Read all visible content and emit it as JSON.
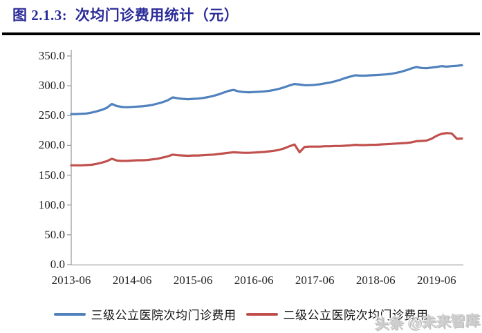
{
  "header": {
    "title": "图 2.1.3:  次均门诊费用统计（元）",
    "title_color": "#2B2B99"
  },
  "watermark": "头条 @未来智库",
  "chart_data": {
    "type": "line",
    "title": "次均门诊费用统计（元）",
    "xlabel": "",
    "ylabel": "",
    "ylim": [
      0,
      350
    ],
    "grid": false,
    "legend_position": "bottom",
    "axis_color": "#9E9E9E",
    "y_ticks": [
      350,
      300,
      250,
      200,
      150,
      100,
      50,
      0
    ],
    "y_tick_labels": [
      "350.0",
      "300.0",
      "250.0",
      "200.0",
      "150.0",
      "100.0",
      "50.0",
      "0.0"
    ],
    "x_tick_labels": [
      "2013-06",
      "2014-06",
      "2015-06",
      "2016-06",
      "2017-06",
      "2018-06",
      "2019-06"
    ],
    "x": [
      "2013-06",
      "2013-07",
      "2013-08",
      "2013-09",
      "2013-10",
      "2013-11",
      "2013-12",
      "2014-01",
      "2014-02",
      "2014-03",
      "2014-04",
      "2014-05",
      "2014-06",
      "2014-07",
      "2014-08",
      "2014-09",
      "2014-10",
      "2014-11",
      "2014-12",
      "2015-01",
      "2015-02",
      "2015-03",
      "2015-04",
      "2015-05",
      "2015-06",
      "2015-07",
      "2015-08",
      "2015-09",
      "2015-10",
      "2015-11",
      "2015-12",
      "2016-01",
      "2016-02",
      "2016-03",
      "2016-04",
      "2016-05",
      "2016-06",
      "2016-07",
      "2016-08",
      "2016-09",
      "2016-10",
      "2016-11",
      "2016-12",
      "2017-01",
      "2017-02",
      "2017-03",
      "2017-04",
      "2017-05",
      "2017-06",
      "2017-07",
      "2017-08",
      "2017-09",
      "2017-10",
      "2017-11",
      "2017-12",
      "2018-01",
      "2018-02",
      "2018-03",
      "2018-04",
      "2018-05",
      "2018-06",
      "2018-07",
      "2018-08",
      "2018-09",
      "2018-10",
      "2018-11",
      "2018-12",
      "2019-01",
      "2019-02",
      "2019-03",
      "2019-04",
      "2019-05",
      "2019-06",
      "2019-07",
      "2019-08",
      "2019-09",
      "2019-10",
      "2019-11"
    ],
    "series": [
      {
        "name": "三级公立医院次均门诊费用",
        "color": "#4F81BD",
        "values": [
          252.5,
          252.5,
          253,
          253.5,
          255,
          257,
          259.5,
          263,
          269.5,
          266,
          264.5,
          264,
          264.5,
          265,
          265.5,
          266.5,
          268,
          270,
          272.5,
          275.5,
          280.5,
          279,
          278,
          277.5,
          278,
          278.5,
          279.5,
          281,
          283,
          285.5,
          288.5,
          291.5,
          293,
          290.5,
          289.5,
          289,
          289.5,
          290,
          290.5,
          291.5,
          293,
          295,
          297.5,
          300.5,
          303,
          302,
          301,
          301,
          301.5,
          302.5,
          304,
          305.5,
          307.5,
          310,
          313,
          315.5,
          317.5,
          317,
          317,
          317.5,
          318,
          318.5,
          319,
          320,
          321.5,
          323.5,
          326,
          329,
          331.5,
          330,
          329.5,
          330.5,
          331.5,
          333,
          332,
          333,
          333.5,
          334.5
        ]
      },
      {
        "name": "二级公立医院次均门诊费用",
        "color": "#C0504D",
        "values": [
          166.5,
          166.5,
          166.5,
          167,
          167.5,
          169,
          171,
          173.5,
          177.5,
          174.5,
          174,
          174,
          174.5,
          175,
          175,
          175.5,
          176.5,
          177.5,
          179.5,
          181.5,
          184.5,
          183.5,
          183,
          182.5,
          183,
          183,
          183.5,
          184,
          184.5,
          185.5,
          186.5,
          187.5,
          188.5,
          188,
          187.5,
          187.5,
          188,
          188.5,
          189,
          190,
          191,
          192.5,
          195,
          198.5,
          201.5,
          188.5,
          197.5,
          198,
          198,
          198,
          198.5,
          198.5,
          199,
          199,
          199.5,
          200,
          201,
          200.5,
          200.5,
          201,
          201,
          201.5,
          202,
          202.5,
          203,
          203.5,
          204,
          205,
          207,
          207.5,
          208,
          211,
          216,
          219.5,
          220.5,
          220,
          211,
          211.5
        ]
      }
    ]
  }
}
